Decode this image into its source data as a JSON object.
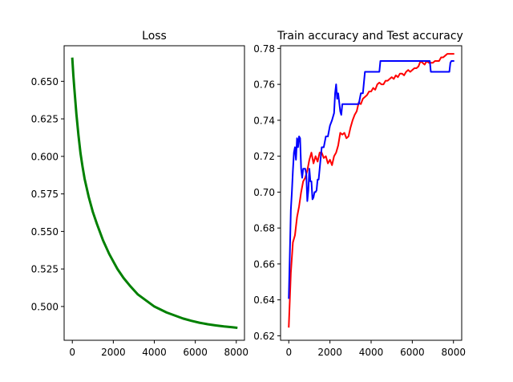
{
  "chart_data": [
    {
      "type": "line",
      "title": "Loss",
      "xlabel": "",
      "ylabel": "",
      "xlim": [
        -400,
        8400
      ],
      "ylim": [
        0.4775,
        0.6737
      ],
      "xticks": [
        0,
        2000,
        4000,
        6000,
        8000
      ],
      "xtick_labels": [
        "0",
        "2000",
        "4000",
        "6000",
        "8000"
      ],
      "yticks": [
        0.5,
        0.525,
        0.55,
        0.575,
        0.6,
        0.625,
        0.65
      ],
      "ytick_labels": [
        "0.500",
        "0.525",
        "0.550",
        "0.575",
        "0.600",
        "0.625",
        "0.650"
      ],
      "grid": false,
      "series": [
        {
          "color": "#008000",
          "x": [
            0,
            50,
            100,
            200,
            300,
            400,
            500,
            600,
            800,
            1000,
            1200,
            1500,
            1800,
            2000,
            2200,
            2500,
            2800,
            3000,
            3200,
            3500,
            3800,
            4000,
            4300,
            4600,
            5000,
            5400,
            5800,
            6200,
            6600,
            7000,
            7400,
            7800,
            8000
          ],
          "values": [
            0.665,
            0.654,
            0.645,
            0.628,
            0.614,
            0.602,
            0.593,
            0.585,
            0.573,
            0.563,
            0.555,
            0.544,
            0.535,
            0.53,
            0.525,
            0.519,
            0.514,
            0.511,
            0.508,
            0.505,
            0.502,
            0.5,
            0.498,
            0.496,
            0.494,
            0.492,
            0.4905,
            0.4892,
            0.4882,
            0.4874,
            0.4867,
            0.4862,
            0.4859
          ]
        }
      ]
    },
    {
      "type": "line",
      "title": "Train accuracy and Test accuracy",
      "xlabel": "",
      "ylabel": "",
      "xlim": [
        -400,
        8400
      ],
      "ylim": [
        0.6175,
        0.7815
      ],
      "xticks": [
        0,
        2000,
        4000,
        6000,
        8000
      ],
      "xtick_labels": [
        "0",
        "2000",
        "4000",
        "6000",
        "8000"
      ],
      "yticks": [
        0.62,
        0.64,
        0.66,
        0.68,
        0.7,
        0.72,
        0.74,
        0.76,
        0.78
      ],
      "ytick_labels": [
        "0.62",
        "0.64",
        "0.66",
        "0.68",
        "0.70",
        "0.72",
        "0.74",
        "0.76",
        "0.78"
      ],
      "grid": false,
      "series": [
        {
          "color": "#ff0000",
          "x": [
            0,
            50,
            100,
            200,
            300,
            400,
            500,
            600,
            700,
            800,
            900,
            1000,
            1100,
            1200,
            1300,
            1400,
            1500,
            1600,
            1700,
            1800,
            1900,
            2000,
            2100,
            2200,
            2300,
            2400,
            2500,
            2600,
            2700,
            2800,
            2900,
            3000,
            3100,
            3200,
            3300,
            3400,
            3500,
            3600,
            3700,
            3800,
            3900,
            4000,
            4100,
            4200,
            4300,
            4400,
            4500,
            4600,
            4700,
            4800,
            4900,
            5000,
            5100,
            5200,
            5300,
            5400,
            5500,
            5600,
            5700,
            5800,
            5900,
            6000,
            6100,
            6200,
            6300,
            6400,
            6500,
            6600,
            6700,
            6800,
            6900,
            7000,
            7100,
            7200,
            7300,
            7400,
            7500,
            7600,
            7700,
            7800,
            7900,
            8000
          ],
          "values": [
            0.625,
            0.64,
            0.655,
            0.672,
            0.676,
            0.686,
            0.692,
            0.7,
            0.706,
            0.708,
            0.712,
            0.718,
            0.722,
            0.716,
            0.72,
            0.717,
            0.722,
            0.722,
            0.719,
            0.72,
            0.716,
            0.718,
            0.715,
            0.72,
            0.722,
            0.726,
            0.733,
            0.732,
            0.733,
            0.73,
            0.731,
            0.736,
            0.74,
            0.743,
            0.745,
            0.75,
            0.749,
            0.752,
            0.753,
            0.754,
            0.756,
            0.756,
            0.758,
            0.757,
            0.76,
            0.761,
            0.76,
            0.76,
            0.762,
            0.762,
            0.763,
            0.764,
            0.763,
            0.765,
            0.764,
            0.766,
            0.766,
            0.765,
            0.767,
            0.768,
            0.767,
            0.768,
            0.769,
            0.769,
            0.77,
            0.773,
            0.772,
            0.771,
            0.773,
            0.772,
            0.772,
            0.772,
            0.773,
            0.773,
            0.773,
            0.775,
            0.775,
            0.776,
            0.777,
            0.777,
            0.777,
            0.777
          ]
        },
        {
          "color": "#0000ff",
          "x": [
            0,
            50,
            100,
            150,
            200,
            250,
            300,
            350,
            400,
            450,
            500,
            550,
            600,
            650,
            700,
            750,
            800,
            850,
            900,
            950,
            1000,
            1050,
            1100,
            1150,
            1200,
            1250,
            1300,
            1350,
            1400,
            1450,
            1500,
            1600,
            1700,
            1800,
            1900,
            2000,
            2100,
            2200,
            2250,
            2300,
            2350,
            2400,
            2450,
            2500,
            2550,
            2600,
            2650,
            2700,
            3000,
            3300,
            3400,
            3500,
            3600,
            3650,
            3700,
            4000,
            4400,
            4450,
            4500,
            5000,
            5500,
            6000,
            6500,
            6800,
            6850,
            6900,
            7300,
            7800,
            7850,
            7900,
            8000
          ],
          "values": [
            0.641,
            0.665,
            0.69,
            0.7,
            0.712,
            0.722,
            0.725,
            0.718,
            0.73,
            0.725,
            0.731,
            0.73,
            0.713,
            0.708,
            0.713,
            0.713,
            0.713,
            0.71,
            0.695,
            0.701,
            0.713,
            0.706,
            0.706,
            0.696,
            0.697,
            0.7,
            0.7,
            0.701,
            0.707,
            0.707,
            0.713,
            0.725,
            0.725,
            0.731,
            0.731,
            0.737,
            0.74,
            0.744,
            0.755,
            0.76,
            0.752,
            0.755,
            0.75,
            0.745,
            0.743,
            0.749,
            0.749,
            0.749,
            0.749,
            0.749,
            0.749,
            0.755,
            0.755,
            0.761,
            0.767,
            0.767,
            0.767,
            0.773,
            0.773,
            0.773,
            0.773,
            0.773,
            0.773,
            0.773,
            0.773,
            0.767,
            0.767,
            0.767,
            0.772,
            0.773,
            0.773
          ]
        }
      ]
    }
  ]
}
